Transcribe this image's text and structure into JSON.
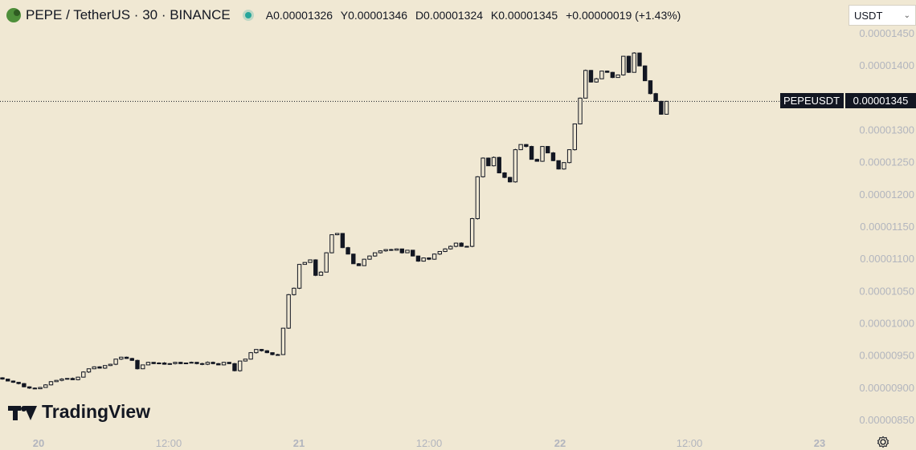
{
  "header": {
    "title": "PEPE / TetherUS · 30 · BINANCE",
    "open": "A0.00001326",
    "high": "Y0.00001346",
    "low": "D0.00001324",
    "close": "K0.00001345",
    "change": "+0.00000019 (+1.43%)"
  },
  "currency_selector": {
    "value": "USDT"
  },
  "brand": {
    "name": "TradingView"
  },
  "price_label": {
    "symbol": "PEPEUSDT",
    "value": "0.00001345"
  },
  "colors": {
    "background": "#f0e8d3",
    "candle": "#131722",
    "axis_text": "#b2b5be"
  },
  "icons": [
    "exchange-logo-icon",
    "market-status-icon",
    "chevron-down-icon",
    "tradingview-logo-icon",
    "settings-icon"
  ],
  "chart_data": {
    "type": "candlestick",
    "title": "PEPE / TetherUS · 30 · BINANCE",
    "y_ticks": [
      "0.00001450",
      "0.00001400",
      "0.00001350",
      "0.00001300",
      "0.00001250",
      "0.00001200",
      "0.00001150",
      "0.00001100",
      "0.00001050",
      "0.00001000",
      "0.00000950",
      "0.00000900",
      "0.00000850"
    ],
    "x_ticks": [
      "20",
      "12:00",
      "21",
      "12:00",
      "22",
      "12:00",
      "23"
    ],
    "ylim": [
      8.35e-06,
      1.455e-05
    ],
    "current_price": 1.345e-05,
    "closes": [
      9.14e-06,
      9.11e-06,
      9.09e-06,
      9.07e-06,
      9.02e-06,
      9e-06,
      8.99e-06,
      9.01e-06,
      9.05e-06,
      9.1e-06,
      9.12e-06,
      9.14e-06,
      9.15e-06,
      9.13e-06,
      9.17e-06,
      9.25e-06,
      9.3e-06,
      9.33e-06,
      9.31e-06,
      9.35e-06,
      9.37e-06,
      9.45e-06,
      9.48e-06,
      9.46e-06,
      9.43e-06,
      9.3e-06,
      9.36e-06,
      9.4e-06,
      9.38e-06,
      9.39e-06,
      9.37e-06,
      9.38e-06,
      9.4e-06,
      9.38e-06,
      9.39e-06,
      9.4e-06,
      9.38e-06,
      9.37e-06,
      9.4e-06,
      9.38e-06,
      9.36e-06,
      9.4e-06,
      9.38e-06,
      9.27e-06,
      9.42e-06,
      9.45e-06,
      9.55e-06,
      9.6e-06,
      9.58e-06,
      9.55e-06,
      9.52e-06,
      9.52e-06,
      9.93e-06,
      1.045e-05,
      1.055e-05,
      1.092e-05,
      1.095e-05,
      1.099e-05,
      1.075e-05,
      1.08e-05,
      1.11e-05,
      1.138e-05,
      1.14e-05,
      1.118e-05,
      1.108e-05,
      1.093e-05,
      1.09e-05,
      1.1e-05,
      1.105e-05,
      1.11e-05,
      1.113e-05,
      1.115e-05,
      1.114e-05,
      1.116e-05,
      1.11e-05,
      1.114e-05,
      1.105e-05,
      1.097e-05,
      1.102e-05,
      1.1e-05,
      1.108e-05,
      1.112e-05,
      1.116e-05,
      1.12e-05,
      1.125e-05,
      1.12e-05,
      1.12e-05,
      1.163e-05,
      1.228e-05,
      1.257e-05,
      1.245e-05,
      1.258e-05,
      1.234e-05,
      1.227e-05,
      1.22e-05,
      1.27e-05,
      1.278e-05,
      1.275e-05,
      1.255e-05,
      1.252e-05,
      1.275e-05,
      1.265e-05,
      1.253e-05,
      1.24e-05,
      1.25e-05,
      1.27e-05,
      1.31e-05,
      1.35e-05,
      1.393e-05,
      1.375e-05,
      1.38e-05,
      1.392e-05,
      1.39e-05,
      1.382e-05,
      1.386e-05,
      1.415e-05,
      1.39e-05,
      1.42e-05,
      1.4e-05,
      1.377e-05,
      1.357e-05,
      1.345e-05,
      1.325e-05,
      1.345e-05
    ]
  }
}
